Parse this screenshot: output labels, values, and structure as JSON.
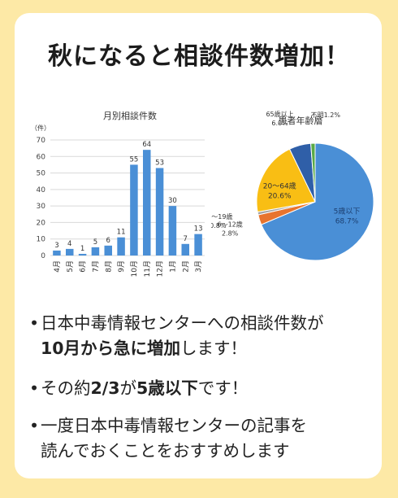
{
  "headline": "秋になると相談件数増加！",
  "chart_data": [
    {
      "type": "bar",
      "title": "月別相談件数",
      "ylabel": "（件）",
      "ylim": [
        0,
        70
      ],
      "yticks": [
        0,
        10,
        20,
        30,
        40,
        50,
        60,
        70
      ],
      "grid": true,
      "categories": [
        "4月",
        "5月",
        "6月",
        "7月",
        "8月",
        "9月",
        "10月",
        "11月",
        "12月",
        "1月",
        "2月",
        "3月"
      ],
      "values": [
        3,
        4,
        1,
        5,
        6,
        11,
        55,
        64,
        53,
        30,
        7,
        13
      ],
      "color": "#4a8fd6"
    },
    {
      "type": "pie",
      "title": "患者年齢層",
      "slices": [
        {
          "label": "5歳以下",
          "value": 68.7,
          "display": "68.7%",
          "color": "#4a8fd6"
        },
        {
          "label": "6～12歳",
          "value": 2.8,
          "display": "2.8%",
          "color": "#e8742e"
        },
        {
          "label": "13～19歳",
          "value": 0.8,
          "display": "0.8%",
          "color": "#a5a5a5"
        },
        {
          "label": "20～64歳",
          "value": 20.6,
          "display": "20.6%",
          "color": "#f9be14"
        },
        {
          "label": "65歳以上",
          "value": 6.0,
          "display": "6.0%",
          "color": "#2f5fa8"
        },
        {
          "label": "不明",
          "value": 1.2,
          "display": "1.2%",
          "color": "#5aaa47"
        }
      ]
    }
  ],
  "bullets": {
    "dot": "•",
    "item1_line1": "日本中毒情報センターへの相談件数が",
    "item1_line2_bold1": "10月から急に増加",
    "item1_line2_rest": "します！",
    "item2_pre": "その約",
    "item2_bold1": "2/3",
    "item2_mid": "が",
    "item2_bold2": "5歳以下",
    "item2_rest": "です！",
    "item3_line1": "一度日本中毒情報センターの記事を",
    "item3_line2": "読んでおくことをおすすめします"
  }
}
